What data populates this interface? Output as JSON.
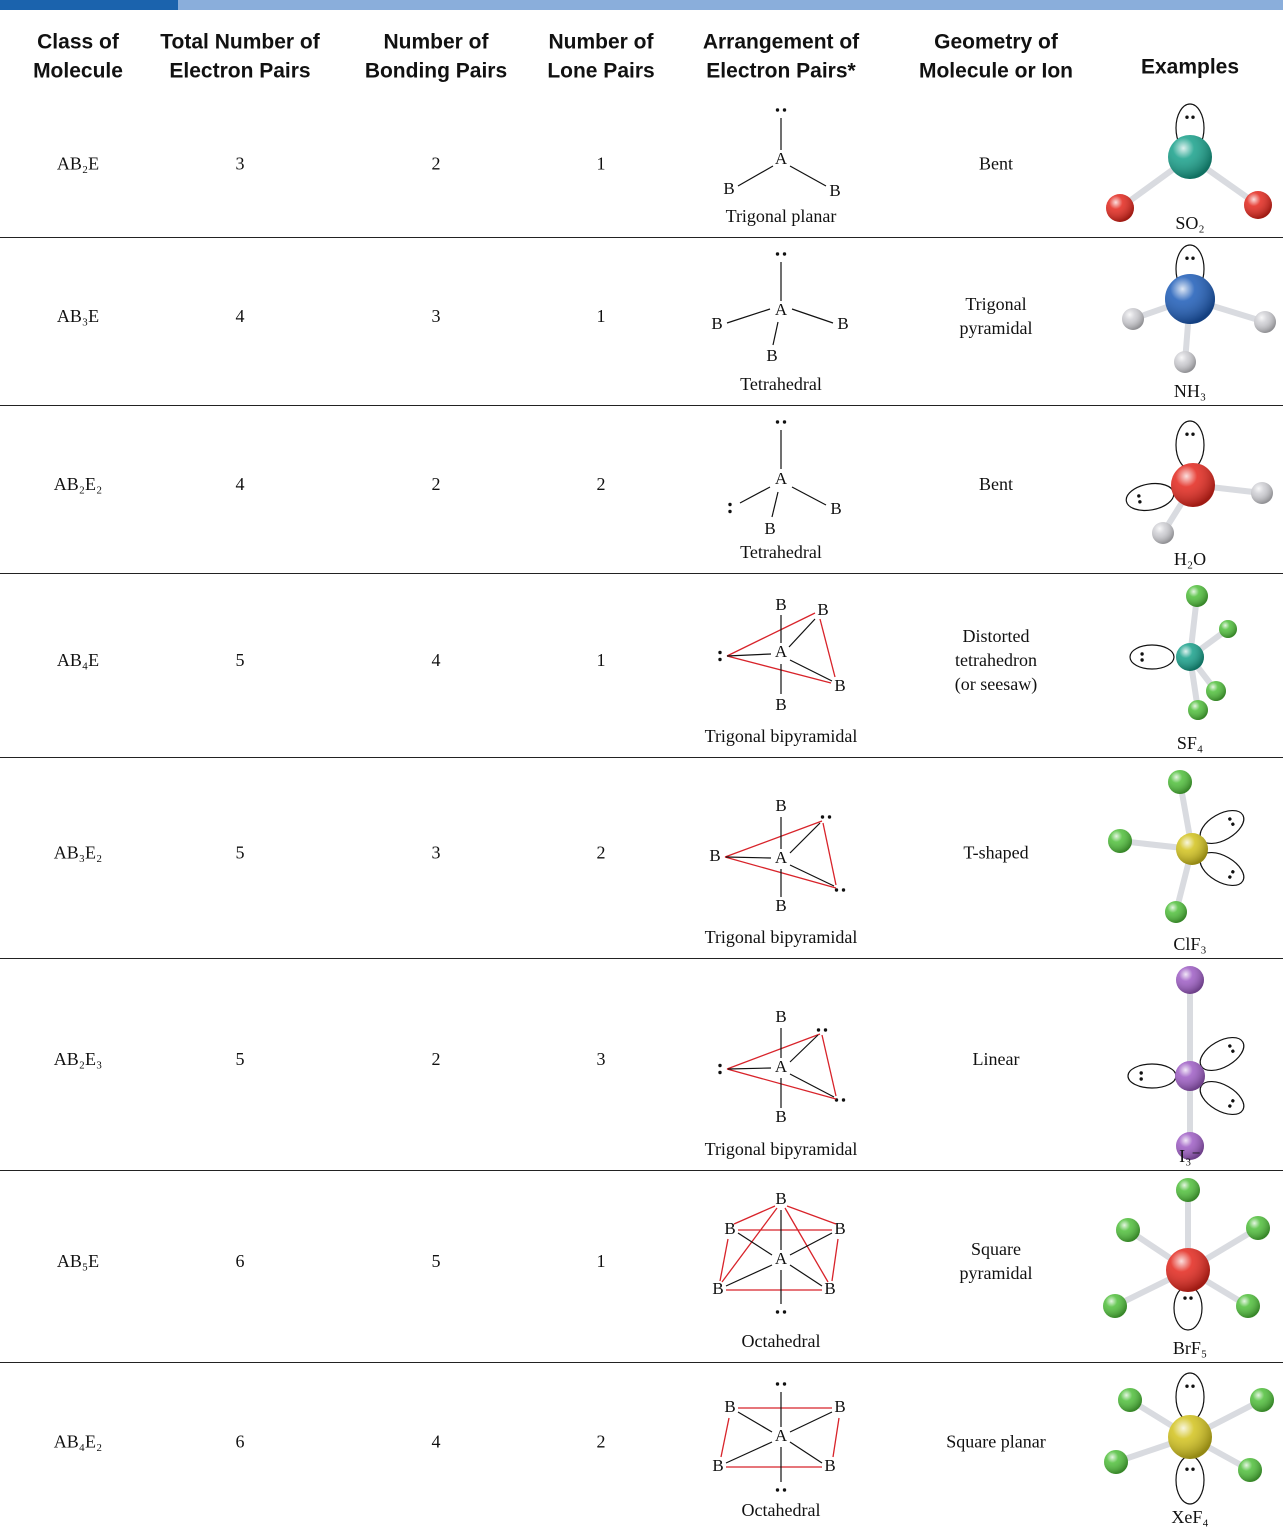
{
  "header": {
    "columns": [
      [
        "Class of",
        "Molecule"
      ],
      [
        "Total Number of",
        "Electron Pairs"
      ],
      [
        "Number of",
        "Bonding Pairs"
      ],
      [
        "Number of",
        "Lone Pairs"
      ],
      [
        "Arrangement of",
        "Electron Pairs*"
      ],
      [
        "Geometry of",
        "Molecule or Ion"
      ],
      [
        "Examples"
      ]
    ]
  },
  "diagram_labels": {
    "central": "A",
    "outer": "B"
  },
  "table": {
    "rows": [
      {
        "class": "AB₂E",
        "total": "3",
        "bonding": "2",
        "lone": "1",
        "arrangement": "Trigonal planar",
        "geometry": [
          "Bent"
        ],
        "example": "SO₂"
      },
      {
        "class": "AB₃E",
        "total": "4",
        "bonding": "3",
        "lone": "1",
        "arrangement": "Tetrahedral",
        "geometry": [
          "Trigonal",
          "pyramidal"
        ],
        "example": "NH₃"
      },
      {
        "class": "AB₂E₂",
        "total": "4",
        "bonding": "2",
        "lone": "2",
        "arrangement": "Tetrahedral",
        "geometry": [
          "Bent"
        ],
        "example": "H₂O"
      },
      {
        "class": "AB₄E",
        "total": "5",
        "bonding": "4",
        "lone": "1",
        "arrangement": "Trigonal bipyramidal",
        "geometry": [
          "Distorted",
          "tetrahedron",
          "(or seesaw)"
        ],
        "example": "SF₄"
      },
      {
        "class": "AB₃E₂",
        "total": "5",
        "bonding": "3",
        "lone": "2",
        "arrangement": "Trigonal bipyramidal",
        "geometry": [
          "T-shaped"
        ],
        "example": "ClF₃"
      },
      {
        "class": "AB₂E₃",
        "total": "5",
        "bonding": "2",
        "lone": "3",
        "arrangement": "Trigonal bipyramidal",
        "geometry": [
          "Linear"
        ],
        "example": "I₃⁻"
      },
      {
        "class": "AB₅E",
        "total": "6",
        "bonding": "5",
        "lone": "1",
        "arrangement": "Octahedral",
        "geometry": [
          "Square",
          "pyramidal"
        ],
        "example": "BrF₅"
      },
      {
        "class": "AB₄E₂",
        "total": "6",
        "bonding": "4",
        "lone": "2",
        "arrangement": "Octahedral",
        "geometry": [
          "Square planar"
        ],
        "example": "XeF₄"
      }
    ]
  }
}
